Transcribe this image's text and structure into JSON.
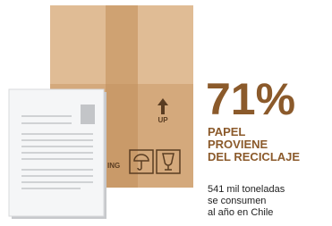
{
  "stat": {
    "value": "71%",
    "label": [
      "PAPEL",
      "PROVIENE",
      "DEL RECICLAJE"
    ],
    "note": [
      "541 mil toneladas",
      "se consumen",
      "al año en Chile"
    ]
  },
  "box": {
    "arrow_label": "UP",
    "side_text": "ING"
  }
}
